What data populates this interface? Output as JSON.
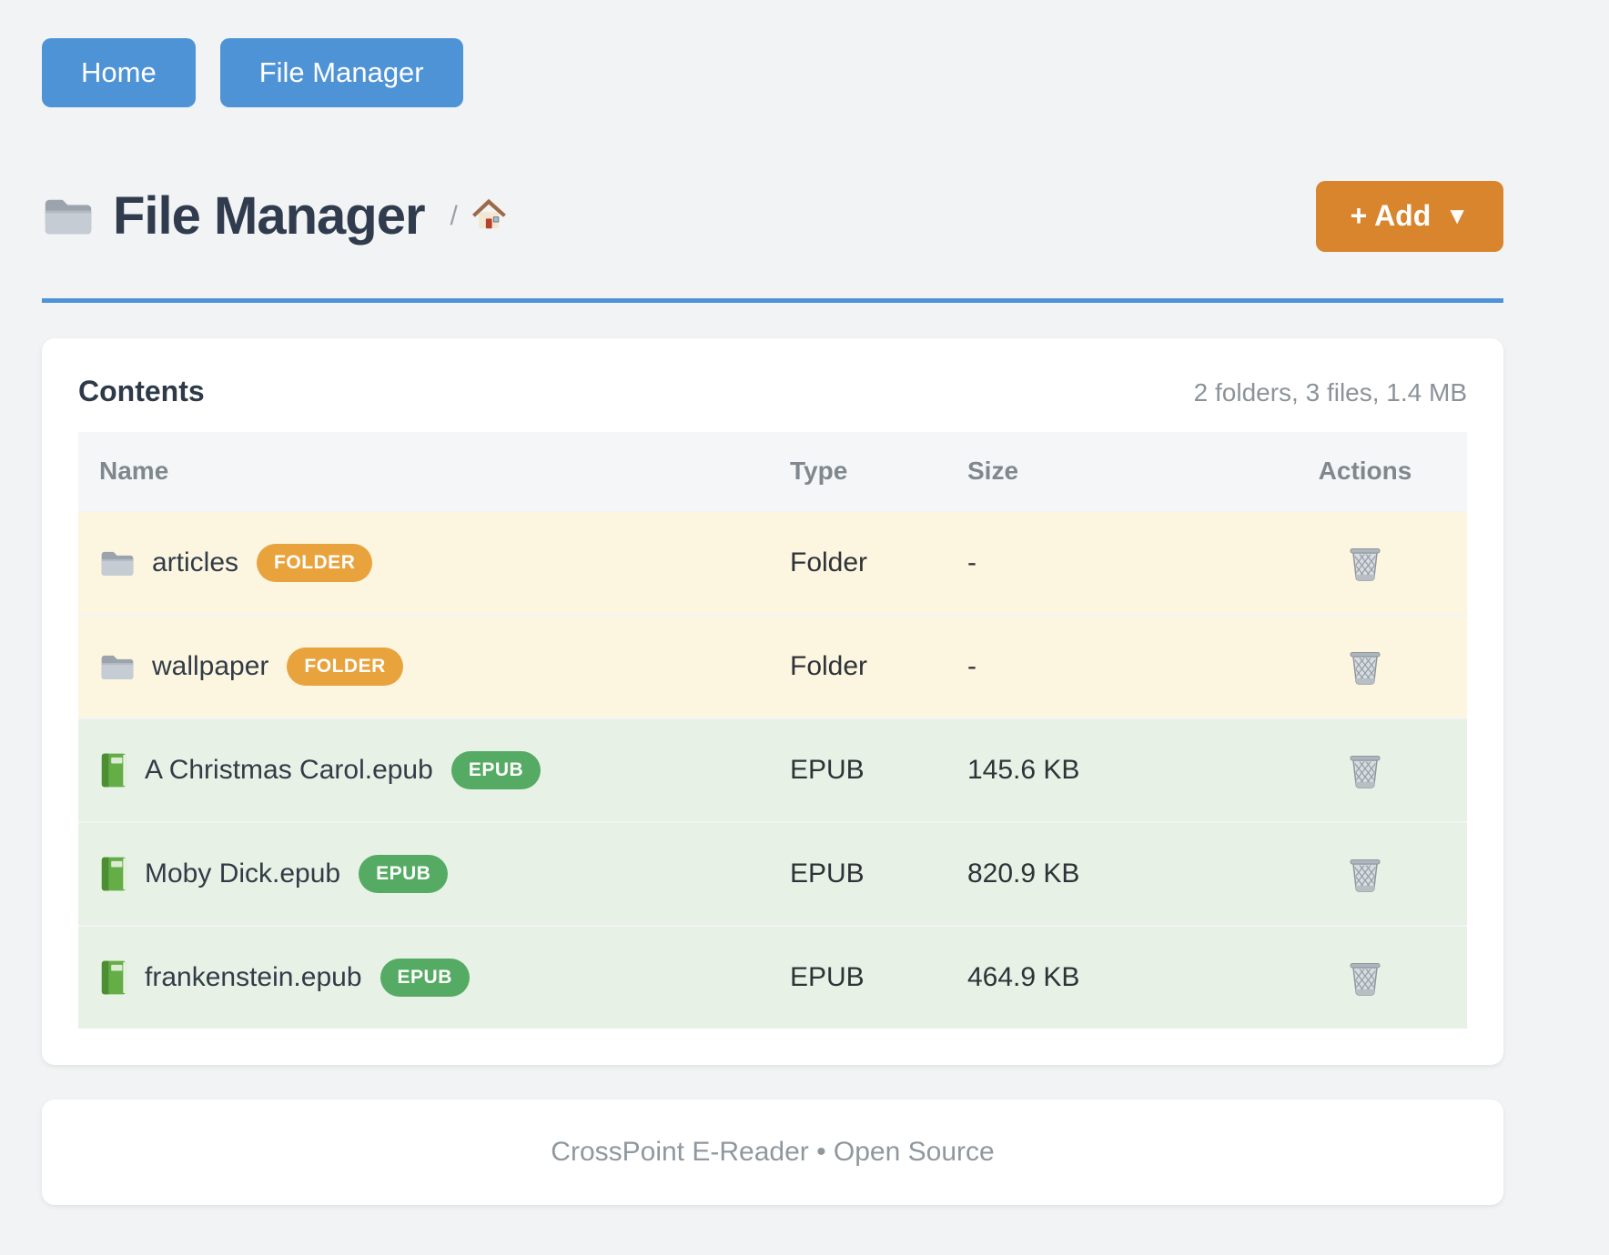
{
  "nav": {
    "buttons": [
      {
        "label": "Home"
      },
      {
        "label": "File Manager"
      }
    ]
  },
  "header": {
    "title": "File Manager",
    "title_icon": "folder-icon",
    "breadcrumb_separator": "/",
    "breadcrumb_home_icon": "house-icon",
    "add_label": "+ Add",
    "add_caret": "▼"
  },
  "contents": {
    "heading": "Contents",
    "summary": "2 folders, 3 files, 1.4 MB",
    "table": {
      "headers": [
        "Name",
        "Type",
        "Size",
        "Actions"
      ],
      "rows": [
        {
          "name": "articles",
          "badge": "FOLDER",
          "type": "Folder",
          "size": "-",
          "kind": "folder",
          "icon": "folder-icon"
        },
        {
          "name": "wallpaper",
          "badge": "FOLDER",
          "type": "Folder",
          "size": "-",
          "kind": "folder",
          "icon": "folder-icon"
        },
        {
          "name": "A Christmas Carol.epub",
          "badge": "EPUB",
          "type": "EPUB",
          "size": "145.6 KB",
          "kind": "file",
          "icon": "book-icon"
        },
        {
          "name": "Moby Dick.epub",
          "badge": "EPUB",
          "type": "EPUB",
          "size": "820.9 KB",
          "kind": "file",
          "icon": "book-icon"
        },
        {
          "name": "frankenstein.epub",
          "badge": "EPUB",
          "type": "EPUB",
          "size": "464.9 KB",
          "kind": "file",
          "icon": "book-icon"
        }
      ],
      "action_icon": "trash-icon"
    }
  },
  "footer": {
    "text": "CrossPoint E-Reader • Open Source"
  },
  "colors": {
    "nav_blue": "#4f93d7",
    "divider_blue": "#4f93d7",
    "add_orange": "#d9852e",
    "badge_orange": "#e8a33c",
    "badge_green": "#56ab64",
    "row_folder_bg": "#fcf5e0",
    "row_file_bg": "#e7f1e6"
  }
}
